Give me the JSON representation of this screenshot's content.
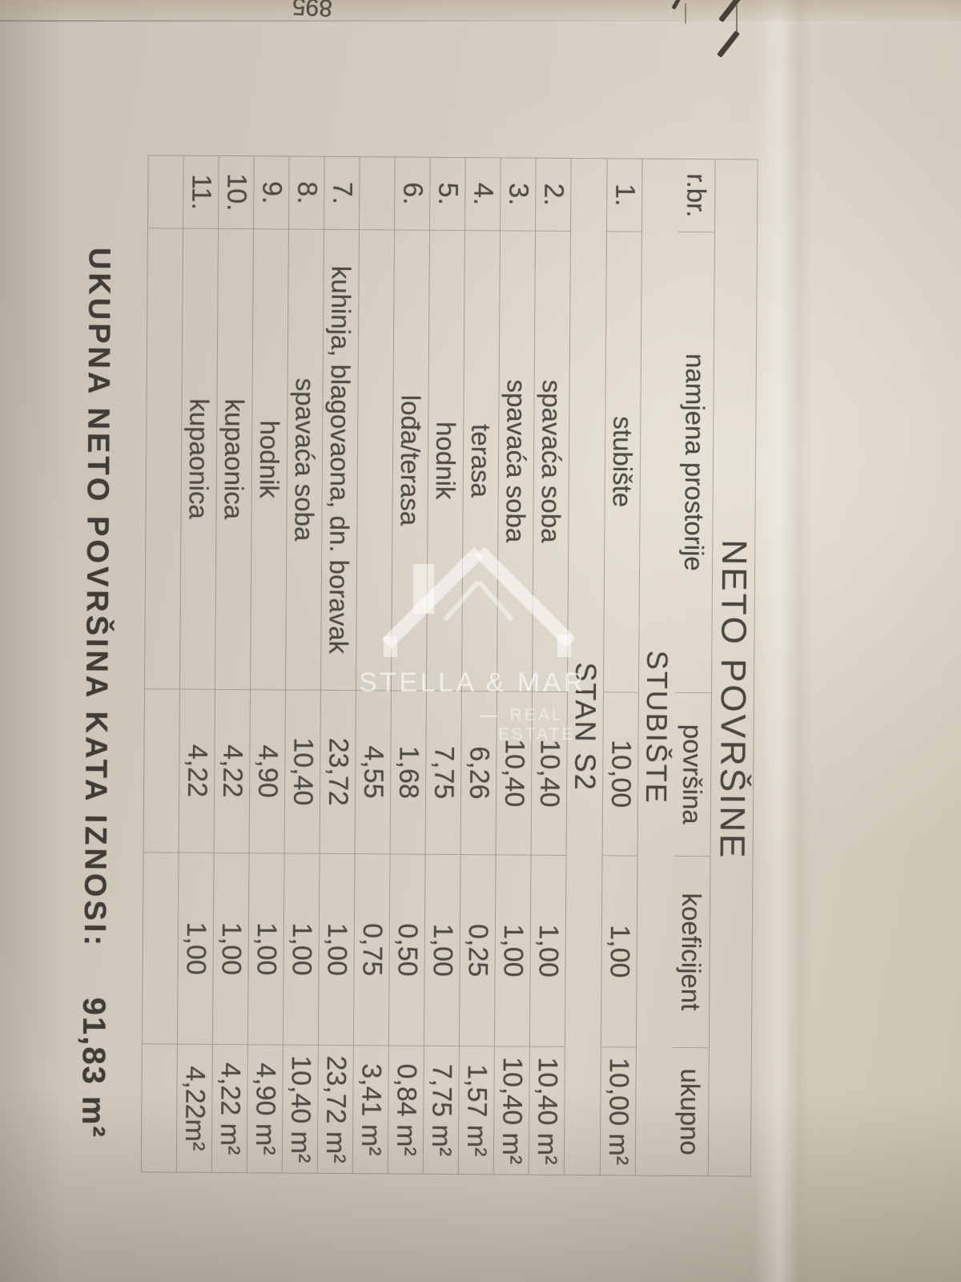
{
  "photo": {
    "corner_number": "895"
  },
  "watermark": {
    "brand": "STELLA & MAR",
    "tagline": "REAL ESTATE",
    "dash": "—",
    "color": "#ffffff"
  },
  "colors": {
    "paper": "#d3ccc0",
    "ink": "#4f4a44",
    "grid_line": "rgba(120,110,95,0.5)"
  },
  "table": {
    "title": "NETO POVRŠINE",
    "columns": [
      "r.br.",
      "namjena prostorije",
      "površina",
      "koeficijent",
      "ukupno"
    ],
    "rows": [
      {
        "type": "section",
        "label": "STUBIŠTE"
      },
      {
        "type": "data",
        "num": "1.",
        "name": "stubište",
        "area": "10,00",
        "coef": "1,00",
        "total": "10,00 m²"
      },
      {
        "type": "section",
        "label": "STAN S2"
      },
      {
        "type": "data",
        "num": "2.",
        "name": "spavaća soba",
        "area": "10,40",
        "coef": "1,00",
        "total": "10,40 m²"
      },
      {
        "type": "data",
        "num": "3.",
        "name": "spavaća soba",
        "area": "10,40",
        "coef": "1,00",
        "total": "10,40 m²"
      },
      {
        "type": "data",
        "num": "4.",
        "name": "terasa",
        "area": "6,26",
        "coef": "0,25",
        "total": "1,57 m²"
      },
      {
        "type": "data",
        "num": "5.",
        "name": "hodnik",
        "area": "7,75",
        "coef": "1,00",
        "total": "7,75 m²"
      },
      {
        "type": "data",
        "num": "6.",
        "name": "lođa/terasa",
        "area": "1,68",
        "coef": "0,50",
        "total": "0,84 m²"
      },
      {
        "type": "data",
        "num": "",
        "name": "",
        "area": "4,55",
        "coef": "0,75",
        "total": "3,41 m²"
      },
      {
        "type": "data",
        "num": "7.",
        "name": "kuhinja, blagovaona, dn. boravak",
        "area": "23,72",
        "coef": "1,00",
        "total": "23,72 m²"
      },
      {
        "type": "data",
        "num": "8.",
        "name": "spavaća soba",
        "area": "10,40",
        "coef": "1,00",
        "total": "10,40 m²"
      },
      {
        "type": "data",
        "num": "9.",
        "name": "hodnik",
        "area": "4,90",
        "coef": "1,00",
        "total": "4,90 m²"
      },
      {
        "type": "data",
        "num": "10.",
        "name": "kupaonica",
        "area": "4,22",
        "coef": "1,00",
        "total": "4,22 m²"
      },
      {
        "type": "data",
        "num": "11.",
        "name": "kupaonica",
        "area": "4,22",
        "coef": "1,00",
        "total": "4,22m²"
      },
      {
        "type": "data",
        "num": "",
        "name": "",
        "area": "",
        "coef": "",
        "total": ""
      }
    ]
  },
  "summary": {
    "label": "UKUPNA NETO POVRŠINA KATA IZNOSI:",
    "value": "91,83 m²"
  }
}
